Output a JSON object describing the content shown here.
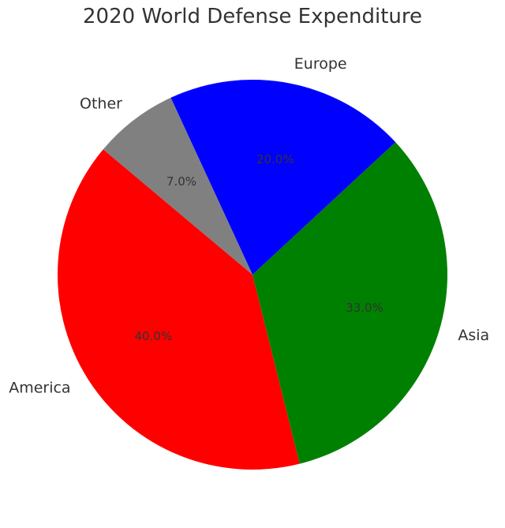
{
  "chart_data": {
    "type": "pie",
    "title": "2020 World Defense Expenditure",
    "categories": [
      "America",
      "Asia",
      "Europe",
      "Other"
    ],
    "values": [
      40.0,
      33.0,
      20.0,
      7.0
    ],
    "percent_labels": [
      "40.0%",
      "33.0%",
      "20.0%",
      "7.0%"
    ],
    "colors": [
      "#ff0000",
      "#008000",
      "#0000ff",
      "#808080"
    ],
    "start_angle_deg": 140,
    "direction": "counterclockwise",
    "legend": "none"
  }
}
